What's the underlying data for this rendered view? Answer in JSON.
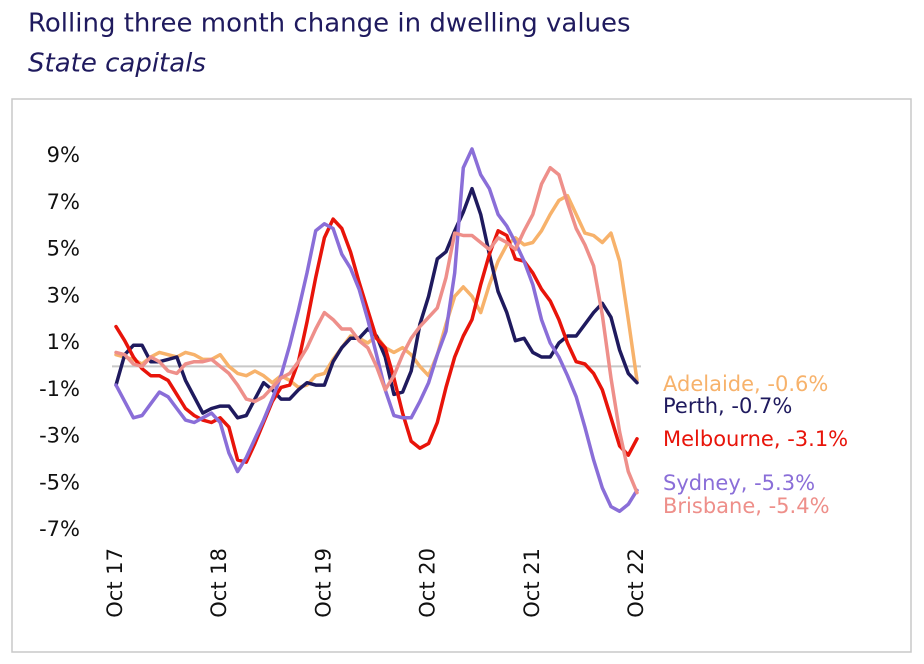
{
  "chart_data": {
    "type": "line",
    "title": "Rolling three month change in dwelling values",
    "subtitle": "State capitals",
    "categories": [
      "Oct 17",
      null,
      null,
      null,
      null,
      null,
      null,
      null,
      null,
      null,
      null,
      null,
      "Oct 18",
      null,
      null,
      null,
      null,
      null,
      null,
      null,
      null,
      null,
      null,
      null,
      "Oct 19",
      null,
      null,
      null,
      null,
      null,
      null,
      null,
      null,
      null,
      null,
      null,
      "Oct 20",
      null,
      null,
      null,
      null,
      null,
      null,
      null,
      null,
      null,
      null,
      null,
      "Oct 21",
      null,
      null,
      null,
      null,
      null,
      null,
      null,
      null,
      null,
      null,
      null,
      "Oct 22"
    ],
    "ylim": [
      -7.6,
      9.8
    ],
    "yticks": [
      {
        "value": 9,
        "label": "9%"
      },
      {
        "value": 7,
        "label": "7%"
      },
      {
        "value": 5,
        "label": "5%"
      },
      {
        "value": 3,
        "label": "3%"
      },
      {
        "value": 1,
        "label": "1%"
      },
      {
        "value": -1,
        "label": "-1%"
      },
      {
        "value": -3,
        "label": "-3%"
      },
      {
        "value": -5,
        "label": "-5%"
      },
      {
        "value": -7,
        "label": "-7%"
      }
    ],
    "reference_line": 0,
    "series": [
      {
        "name": "Adelaide, -0.6%",
        "color": "#f7b26b",
        "values": [
          0.5,
          0.4,
          0.3,
          0.1,
          0.4,
          0.6,
          0.5,
          0.4,
          0.6,
          0.5,
          0.3,
          0.3,
          0.5,
          0,
          -0.3,
          -0.4,
          -0.2,
          -0.4,
          -0.7,
          -0.4,
          -0.6,
          -0.9,
          -0.8,
          -0.4,
          -0.3,
          0.3,
          0.8,
          1.3,
          1.2,
          1.0,
          1.3,
          0.8,
          0.6,
          0.8,
          0.5,
          0,
          -0.4,
          0.5,
          1.8,
          3.0,
          3.4,
          3.0,
          2.3,
          3.5,
          4.5,
          5.2,
          5.5,
          5.2,
          5.3,
          5.8,
          6.5,
          7.1,
          7.3,
          6.5,
          5.7,
          5.6,
          5.3,
          5.7,
          4.5,
          2.0,
          -0.6
        ]
      },
      {
        "name": "Perth, -0.7%",
        "color": "#1f1a5e",
        "values": [
          -0.8,
          0.5,
          0.9,
          0.9,
          0.2,
          0.2,
          0.3,
          0.4,
          -0.6,
          -1.3,
          -2.0,
          -1.8,
          -1.7,
          -1.7,
          -2.2,
          -2.1,
          -1.4,
          -0.7,
          -1.0,
          -1.4,
          -1.4,
          -1.0,
          -0.7,
          -0.8,
          -0.8,
          0.2,
          0.8,
          1.2,
          1.2,
          1.6,
          1.3,
          0.4,
          -1.2,
          -1.1,
          -0.2,
          1.8,
          3.0,
          4.6,
          4.9,
          5.8,
          6.6,
          7.6,
          6.5,
          4.8,
          3.2,
          2.3,
          1.1,
          1.2,
          0.6,
          0.4,
          0.4,
          1.0,
          1.3,
          1.3,
          1.8,
          2.3,
          2.7,
          2.1,
          0.7,
          -0.3,
          -0.7
        ]
      },
      {
        "name": "Melbourne, -3.1%",
        "color": "#e8140a",
        "values": [
          1.7,
          1.1,
          0.4,
          -0.1,
          -0.4,
          -0.4,
          -0.6,
          -1.2,
          -1.8,
          -2.1,
          -2.3,
          -2.4,
          -2.2,
          -2.6,
          -4.0,
          -4.1,
          -3.3,
          -2.4,
          -1.5,
          -0.9,
          -0.8,
          0.2,
          1.9,
          3.8,
          5.5,
          6.3,
          5.9,
          4.9,
          3.6,
          2.4,
          1.2,
          0.8,
          -0.5,
          -2.0,
          -3.2,
          -3.5,
          -3.3,
          -2.4,
          -0.9,
          0.4,
          1.3,
          2.0,
          3.5,
          4.8,
          5.8,
          5.6,
          4.6,
          4.5,
          4.0,
          3.3,
          2.8,
          2.0,
          1.0,
          0.2,
          0.1,
          -0.3,
          -1.0,
          -2.2,
          -3.4,
          -3.8,
          -3.1
        ]
      },
      {
        "name": "Sydney, -5.3%",
        "color": "#8a6ed8",
        "values": [
          -0.8,
          -1.5,
          -2.2,
          -2.1,
          -1.6,
          -1.1,
          -1.3,
          -1.8,
          -2.3,
          -2.4,
          -2.2,
          -2.0,
          -2.4,
          -3.7,
          -4.5,
          -3.9,
          -3.1,
          -2.3,
          -1.4,
          -0.4,
          0.9,
          2.4,
          4.0,
          5.8,
          6.1,
          5.9,
          4.8,
          4.2,
          3.3,
          2.0,
          0.5,
          -1.0,
          -2.1,
          -2.2,
          -2.2,
          -1.5,
          -0.7,
          0.5,
          1.5,
          4.0,
          8.5,
          9.3,
          8.2,
          7.6,
          6.5,
          6.0,
          5.3,
          4.5,
          3.5,
          2.0,
          1.0,
          0.4,
          -0.4,
          -1.3,
          -2.6,
          -4.0,
          -5.2,
          -6.0,
          -6.2,
          -5.9,
          -5.3
        ]
      },
      {
        "name": "Brisbane, -5.4%",
        "color": "#ee8f8a",
        "values": [
          0.6,
          0.5,
          0.1,
          0.0,
          0.4,
          0.2,
          -0.2,
          -0.3,
          0.1,
          0.2,
          0.2,
          0.3,
          0.0,
          -0.3,
          -0.8,
          -1.4,
          -1.5,
          -1.3,
          -0.9,
          -0.5,
          -0.3,
          0.2,
          0.8,
          1.6,
          2.3,
          2.0,
          1.6,
          1.6,
          1.1,
          0.8,
          0.0,
          -1.0,
          -0.4,
          0.5,
          1.2,
          1.7,
          2.1,
          2.5,
          3.8,
          5.7,
          5.6,
          5.6,
          5.3,
          5.0,
          5.5,
          5.3,
          5.0,
          5.8,
          6.5,
          7.8,
          8.5,
          8.2,
          7.0,
          5.9,
          5.2,
          4.3,
          2.2,
          -0.5,
          -2.8,
          -4.5,
          -5.4
        ]
      }
    ]
  }
}
